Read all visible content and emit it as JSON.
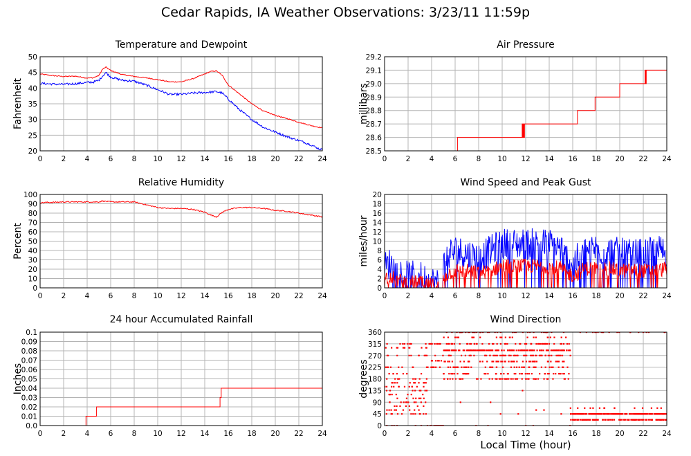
{
  "title": "Cedar Rapids, IA Weather Observations: 3/23/11 11:59p",
  "global_xlabel": "Local Time (hour)",
  "colors": {
    "red": "#ff0000",
    "blue": "#0000ff",
    "grid": "#b4b4b4"
  },
  "chart_data": [
    {
      "id": "temp",
      "type": "line",
      "title": "Temperature and Dewpoint",
      "xlabel": "",
      "ylabel": "Fahrenheit",
      "xlim": [
        0,
        24
      ],
      "ylim": [
        20,
        50
      ],
      "xticks": [
        "0",
        "2",
        "4",
        "6",
        "8",
        "10",
        "12",
        "14",
        "16",
        "18",
        "20",
        "22",
        "24"
      ],
      "yticks": [
        "20",
        "25",
        "30",
        "35",
        "40",
        "45",
        "50"
      ],
      "grid": true,
      "series": [
        {
          "color": "#ff0000",
          "noise": 0.15,
          "x": [
            0,
            1,
            2,
            3,
            4,
            4.5,
            5,
            5.3,
            5.6,
            6,
            7,
            8,
            9,
            10,
            11,
            12,
            13,
            14,
            14.5,
            15,
            15.5,
            16,
            17,
            18,
            19,
            20,
            21,
            22,
            23,
            24
          ],
          "y": [
            44.5,
            44,
            43.7,
            43.8,
            43.2,
            43.3,
            44,
            46,
            46.7,
            45.6,
            44.3,
            43.7,
            43.3,
            42.7,
            42,
            42,
            43,
            44.5,
            45.3,
            45.5,
            44,
            41,
            38,
            35,
            32.7,
            31.3,
            30.3,
            29.1,
            28.1,
            27.3
          ]
        },
        {
          "color": "#0000ff",
          "noise": 0.35,
          "x": [
            0,
            1,
            2,
            3,
            4,
            4.5,
            5,
            5.3,
            5.6,
            6,
            7,
            8,
            9,
            10,
            11,
            12,
            13,
            14,
            15,
            15.5,
            16,
            17,
            18,
            19,
            20,
            21,
            22,
            23,
            23.5,
            24
          ],
          "y": [
            41.5,
            41.3,
            41.2,
            41.4,
            41.8,
            41.9,
            42.5,
            43.8,
            45,
            43.5,
            42.5,
            42.2,
            41,
            39.5,
            38,
            38,
            38.4,
            38.6,
            38.9,
            38.4,
            36.5,
            33,
            30,
            27.5,
            26,
            24.5,
            23.3,
            22,
            21,
            20.3
          ]
        }
      ]
    },
    {
      "id": "pressure",
      "type": "line",
      "title": "Air Pressure",
      "xlabel": "",
      "ylabel": "millibars",
      "xlim": [
        0,
        24
      ],
      "ylim": [
        28.5,
        29.2
      ],
      "xticks": [
        "0",
        "2",
        "4",
        "6",
        "8",
        "10",
        "12",
        "14",
        "16",
        "18",
        "20",
        "22",
        "24"
      ],
      "yticks": [
        "28.5",
        "28.6",
        "28.7",
        "28.8",
        "28.9",
        "29.0",
        "29.1",
        "29.2"
      ],
      "grid": true,
      "series": [
        {
          "color": "#ff0000",
          "noise": 0,
          "x": [
            0,
            6.2,
            6.2,
            11.7,
            11.7,
            11.75,
            11.75,
            11.8,
            11.8,
            11.85,
            11.85,
            11.9,
            11.9,
            12.0,
            12.0,
            16.4,
            16.4,
            17.9,
            17.9,
            20.0,
            20.0,
            22.15,
            22.15,
            22.2,
            22.2,
            22.25,
            22.25,
            24
          ],
          "y": [
            28.5,
            28.5,
            28.6,
            28.6,
            28.7,
            28.7,
            28.6,
            28.6,
            28.7,
            28.7,
            28.6,
            28.6,
            28.7,
            28.7,
            28.7,
            28.7,
            28.8,
            28.8,
            28.9,
            28.9,
            29.0,
            29.0,
            29.1,
            29.1,
            29.0,
            29.0,
            29.1,
            29.1
          ]
        }
      ]
    },
    {
      "id": "humidity",
      "type": "line",
      "title": "Relative Humidity",
      "xlabel": "",
      "ylabel": "Percent",
      "xlim": [
        0,
        24
      ],
      "ylim": [
        0,
        100
      ],
      "xticks": [
        "0",
        "2",
        "4",
        "6",
        "8",
        "10",
        "12",
        "14",
        "16",
        "18",
        "20",
        "22",
        "24"
      ],
      "yticks": [
        "0",
        "10",
        "20",
        "30",
        "40",
        "50",
        "60",
        "70",
        "80",
        "90",
        "100"
      ],
      "grid": true,
      "series": [
        {
          "color": "#ff0000",
          "noise": 0.6,
          "x": [
            0,
            0.5,
            1,
            2,
            3,
            4,
            5,
            5.3,
            6,
            7,
            8,
            9,
            10,
            11,
            12,
            13,
            14,
            14.5,
            15,
            15.5,
            16,
            17,
            18,
            19,
            20,
            21,
            22,
            23,
            24
          ],
          "y": [
            91,
            91.5,
            91.5,
            92,
            92,
            92,
            92,
            93,
            92,
            92,
            92,
            89,
            86,
            85,
            85,
            84,
            81,
            78,
            76,
            81,
            84,
            86,
            86,
            85,
            83,
            82,
            80,
            78,
            76
          ]
        }
      ]
    },
    {
      "id": "wind",
      "type": "line",
      "title": "Wind Speed and Peak Gust",
      "xlabel": "",
      "ylabel": "miles/hour",
      "xlim": [
        0,
        24
      ],
      "ylim": [
        0,
        20
      ],
      "xticks": [
        "0",
        "2",
        "4",
        "6",
        "8",
        "10",
        "12",
        "14",
        "16",
        "18",
        "20",
        "22",
        "24"
      ],
      "yticks": [
        "0",
        "2",
        "4",
        "6",
        "8",
        "10",
        "12",
        "14",
        "16",
        "18",
        "20"
      ],
      "grid": true,
      "series": [
        {
          "color": "#0000ff",
          "noise": 3.5,
          "clip": [
            0,
            17
          ],
          "x": [
            0,
            0.5,
            1,
            2,
            3,
            3.5,
            4,
            4.6,
            4.8,
            5,
            5.5,
            6,
            7,
            8,
            9,
            10,
            11,
            12,
            13,
            14,
            15,
            15.5,
            16,
            16.5,
            17,
            18,
            19,
            20,
            21,
            22,
            23,
            24
          ],
          "y": [
            4,
            5,
            3,
            2,
            2,
            1.5,
            1,
            0.5,
            3,
            5,
            7,
            7.5,
            7,
            6,
            7.5,
            9,
            9,
            9,
            9,
            9,
            8,
            6,
            5,
            6,
            7.5,
            8,
            7.5,
            7,
            6.5,
            7,
            7.5,
            7.5
          ]
        },
        {
          "color": "#ff0000",
          "noise": 1.6,
          "clip": [
            0,
            9
          ],
          "x": [
            0,
            0.5,
            1,
            2,
            3,
            3.5,
            4,
            4.6,
            4.8,
            5,
            5.5,
            6,
            7,
            8,
            9,
            10,
            11,
            12,
            13,
            14,
            15,
            15.5,
            16,
            16.5,
            17,
            18,
            19,
            20,
            21,
            22,
            23,
            24
          ],
          "y": [
            2,
            2.5,
            1.5,
            1,
            1,
            0.5,
            0.5,
            0,
            1.5,
            2,
            3,
            3.5,
            3.5,
            3,
            3.5,
            4.5,
            4.5,
            4.5,
            4.5,
            4.5,
            4,
            3,
            2.5,
            3,
            4,
            4,
            4,
            3.5,
            3.5,
            3.5,
            3.5,
            4
          ]
        }
      ]
    },
    {
      "id": "rain",
      "type": "line",
      "title": "24 hour Accumulated Rainfall",
      "xlabel": "",
      "ylabel": "Inches",
      "xlim": [
        0,
        24
      ],
      "ylim": [
        0,
        0.1
      ],
      "xticks": [
        "0",
        "2",
        "4",
        "6",
        "8",
        "10",
        "12",
        "14",
        "16",
        "18",
        "20",
        "22",
        "24"
      ],
      "yticks": [
        "0.0",
        "0.01",
        "0.02",
        "0.03",
        "0.04",
        "0.05",
        "0.06",
        "0.07",
        "0.08",
        "0.09",
        "0.1"
      ],
      "grid": true,
      "series": [
        {
          "color": "#ff0000",
          "noise": 0,
          "x": [
            0,
            3.9,
            3.9,
            4.8,
            4.8,
            15.3,
            15.3,
            15.4,
            15.4,
            24
          ],
          "y": [
            0,
            0,
            0.01,
            0.01,
            0.02,
            0.02,
            0.03,
            0.03,
            0.04,
            0.04
          ]
        }
      ]
    },
    {
      "id": "winddir",
      "type": "scatter",
      "title": "Wind Direction",
      "xlabel": "Local Time (hour)",
      "ylabel": "degrees",
      "xlim": [
        0,
        24
      ],
      "ylim": [
        0,
        360
      ],
      "xticks": [
        "0",
        "2",
        "4",
        "6",
        "8",
        "10",
        "12",
        "14",
        "16",
        "18",
        "20",
        "22",
        "24"
      ],
      "yticks": [
        "0",
        "45",
        "90",
        "135",
        "180",
        "225",
        "270",
        "315",
        "360"
      ],
      "grid": true,
      "series": [
        {
          "color": "#ff0000",
          "segments": [
            {
              "from": 0,
              "to": 3.6,
              "count": 150,
              "values": [
                0,
                45,
                60,
                75,
                90,
                105,
                120,
                135,
                150,
                165,
                180,
                200,
                225,
                270,
                300,
                315
              ]
            },
            {
              "from": 3.6,
              "to": 5.0,
              "count": 45,
              "values": [
                0,
                0,
                0,
                0,
                225,
                250,
                270,
                315
              ]
            },
            {
              "from": 5.0,
              "to": 15.8,
              "count": 520,
              "values": [
                270,
                290,
                290,
                290,
                315,
                340,
                360,
                247,
                225,
                180,
                200
              ]
            },
            {
              "from": 5.0,
              "to": 15.8,
              "count": 14,
              "values": [
                0,
                45,
                60,
                90,
                135
              ]
            },
            {
              "from": 15.8,
              "to": 24,
              "count": 320,
              "values": [
                22.5,
                22.5,
                45,
                45,
                45
              ]
            },
            {
              "from": 15.8,
              "to": 24,
              "count": 35,
              "values": [
                360,
                360,
                67.5
              ]
            }
          ]
        }
      ]
    }
  ]
}
